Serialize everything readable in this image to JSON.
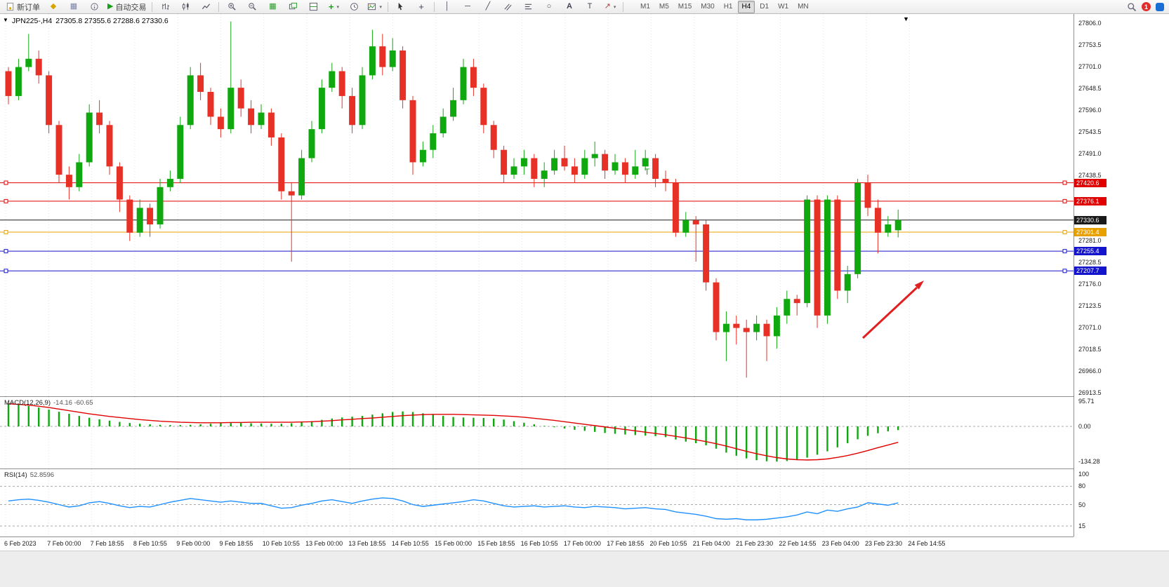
{
  "toolbar": {
    "new_order_label": "新订单",
    "auto_trading_label": "自动交易",
    "timeframes": [
      "M1",
      "M5",
      "M15",
      "M30",
      "H1",
      "H4",
      "D1",
      "W1",
      "MN"
    ],
    "active_timeframe": "H4",
    "notification_count": "1"
  },
  "icons": {
    "market_watch": "◆",
    "chart_window": "▦",
    "autotrade_play": "▶",
    "tile_windows": "▦",
    "indicator_plus": "+",
    "caret": "▾",
    "crosshair": "+",
    "vline": "│",
    "hline": "─",
    "trendline": "╱",
    "ellipse": "○",
    "text_tool": "A",
    "label_tool": "T",
    "arrows_tool": "↗",
    "collapse": "▼",
    "autoscroll": "▼"
  },
  "chart": {
    "title_symbol": "JPN225-,H4",
    "title_ohlc": "27305.8 27355.6 27288.6 27330.6",
    "macd_label": "MACD(12,26,9)",
    "macd_values": "-14.16 -60.65",
    "rsi_label": "RSI(14)",
    "rsi_value": "52.8596",
    "text_marker": "T"
  },
  "price_scale": {
    "ticks": [
      27806.0,
      27753.5,
      27701.0,
      27648.5,
      27596.0,
      27543.5,
      27491.0,
      27438.5,
      27281.0,
      27228.5,
      27176.0,
      27123.5,
      27071.0,
      27018.5,
      26966.0,
      26913.5
    ],
    "macd_ticks": [
      "95.71",
      "0.00",
      "-134.28"
    ],
    "rsi_ticks": [
      "100",
      "80",
      "50",
      "15"
    ]
  },
  "time_axis": {
    "labels": [
      "6 Feb 2023",
      "7 Feb 00:00",
      "7 Feb 18:55",
      "8 Feb 10:55",
      "9 Feb 00:00",
      "9 Feb 18:55",
      "10 Feb 10:55",
      "13 Feb 00:00",
      "13 Feb 18:55",
      "14 Feb 10:55",
      "15 Feb 00:00",
      "15 Feb 18:55",
      "16 Feb 10:55",
      "17 Feb 00:00",
      "17 Feb 18:55",
      "20 Feb 10:55",
      "21 Feb 04:00",
      "21 Feb 23:30",
      "22 Feb 14:55",
      "23 Feb 04:00",
      "23 Feb 23:30",
      "24 Feb 14:55"
    ]
  },
  "chart_data": {
    "type": "candlestick",
    "symbol": "JPN225-",
    "period": "H4",
    "price_range": [
      26913.5,
      27806.0
    ],
    "colors": {
      "up": "#0fa90f",
      "down": "#e83126",
      "macd_hist": "#0fa90f",
      "macd_signal": "#e00000",
      "rsi": "#1e90ff",
      "arrow": "#e02020"
    },
    "candles": [
      [
        27690,
        27700,
        27610,
        27630
      ],
      [
        27630,
        27720,
        27620,
        27700
      ],
      [
        27700,
        27780,
        27690,
        27720
      ],
      [
        27720,
        27740,
        27660,
        27680
      ],
      [
        27680,
        27690,
        27540,
        27560
      ],
      [
        27560,
        27570,
        27420,
        27440
      ],
      [
        27440,
        27460,
        27380,
        27410
      ],
      [
        27410,
        27490,
        27400,
        27470
      ],
      [
        27470,
        27610,
        27460,
        27590
      ],
      [
        27590,
        27620,
        27540,
        27560
      ],
      [
        27560,
        27570,
        27440,
        27460
      ],
      [
        27460,
        27470,
        27350,
        27380
      ],
      [
        27380,
        27390,
        27280,
        27300
      ],
      [
        27300,
        27380,
        27290,
        27360
      ],
      [
        27360,
        27370,
        27290,
        27320
      ],
      [
        27320,
        27430,
        27310,
        27410
      ],
      [
        27410,
        27450,
        27400,
        27430
      ],
      [
        27430,
        27580,
        27420,
        27560
      ],
      [
        27560,
        27700,
        27550,
        27680
      ],
      [
        27680,
        27710,
        27620,
        27640
      ],
      [
        27640,
        27650,
        27560,
        27580
      ],
      [
        27580,
        27600,
        27530,
        27550
      ],
      [
        27550,
        27810,
        27540,
        27650
      ],
      [
        27650,
        27670,
        27580,
        27600
      ],
      [
        27600,
        27620,
        27540,
        27560
      ],
      [
        27560,
        27610,
        27550,
        27590
      ],
      [
        27590,
        27600,
        27510,
        27530
      ],
      [
        27530,
        27540,
        27380,
        27400
      ],
      [
        27400,
        27420,
        27230,
        27390
      ],
      [
        27390,
        27500,
        27380,
        27480
      ],
      [
        27480,
        27570,
        27470,
        27550
      ],
      [
        27550,
        27670,
        27540,
        27650
      ],
      [
        27650,
        27710,
        27640,
        27690
      ],
      [
        27690,
        27700,
        27600,
        27630
      ],
      [
        27630,
        27650,
        27540,
        27560
      ],
      [
        27560,
        27700,
        27550,
        27680
      ],
      [
        27680,
        27790,
        27670,
        27750
      ],
      [
        27750,
        27780,
        27680,
        27700
      ],
      [
        27700,
        27770,
        27690,
        27740
      ],
      [
        27740,
        27750,
        27600,
        27620
      ],
      [
        27620,
        27630,
        27440,
        27470
      ],
      [
        27470,
        27520,
        27460,
        27500
      ],
      [
        27500,
        27560,
        27480,
        27540
      ],
      [
        27540,
        27600,
        27530,
        27580
      ],
      [
        27580,
        27650,
        27570,
        27620
      ],
      [
        27620,
        27720,
        27610,
        27700
      ],
      [
        27700,
        27720,
        27630,
        27650
      ],
      [
        27650,
        27660,
        27540,
        27560
      ],
      [
        27560,
        27570,
        27480,
        27500
      ],
      [
        27500,
        27510,
        27420,
        27440
      ],
      [
        27440,
        27480,
        27430,
        27460
      ],
      [
        27460,
        27500,
        27440,
        27480
      ],
      [
        27480,
        27490,
        27410,
        27430
      ],
      [
        27430,
        27470,
        27410,
        27450
      ],
      [
        27450,
        27500,
        27440,
        27480
      ],
      [
        27480,
        27510,
        27450,
        27460
      ],
      [
        27460,
        27480,
        27420,
        27440
      ],
      [
        27440,
        27500,
        27430,
        27480
      ],
      [
        27480,
        27520,
        27460,
        27490
      ],
      [
        27490,
        27500,
        27430,
        27450
      ],
      [
        27450,
        27490,
        27440,
        27470
      ],
      [
        27470,
        27480,
        27420,
        27440
      ],
      [
        27440,
        27500,
        27430,
        27460
      ],
      [
        27460,
        27500,
        27450,
        27480
      ],
      [
        27480,
        27490,
        27410,
        27430
      ],
      [
        27430,
        27450,
        27400,
        27420
      ],
      [
        27420,
        27430,
        27290,
        27300
      ],
      [
        27300,
        27350,
        27290,
        27330
      ],
      [
        27330,
        27340,
        27230,
        27320
      ],
      [
        27320,
        27330,
        27160,
        27180
      ],
      [
        27180,
        27190,
        27040,
        27060
      ],
      [
        27060,
        27110,
        26990,
        27080
      ],
      [
        27080,
        27100,
        27030,
        27070
      ],
      [
        27070,
        27090,
        26950,
        27060
      ],
      [
        27060,
        27100,
        27040,
        27080
      ],
      [
        27080,
        27090,
        26990,
        27050
      ],
      [
        27050,
        27120,
        27020,
        27100
      ],
      [
        27100,
        27160,
        27080,
        27140
      ],
      [
        27140,
        27150,
        27100,
        27130
      ],
      [
        27130,
        27390,
        27120,
        27380
      ],
      [
        27380,
        27390,
        27070,
        27100
      ],
      [
        27100,
        27390,
        27080,
        27380
      ],
      [
        27380,
        27390,
        27140,
        27160
      ],
      [
        27160,
        27220,
        27130,
        27200
      ],
      [
        27200,
        27430,
        27190,
        27420
      ],
      [
        27420,
        27440,
        27340,
        27360
      ],
      [
        27360,
        27380,
        27250,
        27300
      ],
      [
        27300,
        27340,
        27290,
        27320
      ],
      [
        27305.8,
        27355.6,
        27288.6,
        27330.6
      ]
    ],
    "macd": {
      "histogram": [
        88,
        84,
        78,
        72,
        64,
        56,
        48,
        40,
        33,
        27,
        22,
        17,
        13,
        10,
        8,
        6,
        5,
        5,
        6,
        8,
        10,
        12,
        13,
        13,
        12,
        11,
        10,
        10,
        12,
        16,
        20,
        25,
        30,
        34,
        37,
        40,
        45,
        50,
        55,
        57,
        55,
        50,
        45,
        40,
        36,
        34,
        33,
        32,
        30,
        26,
        20,
        14,
        8,
        2,
        -3,
        -8,
        -13,
        -17,
        -21,
        -25,
        -28,
        -31,
        -33,
        -35,
        -37,
        -41,
        -50,
        -58,
        -64,
        -72,
        -85,
        -100,
        -112,
        -122,
        -129,
        -133,
        -134,
        -132,
        -127,
        -119,
        -108,
        -95,
        -80,
        -64,
        -49,
        -36,
        -26,
        -19,
        -14.16
      ],
      "signal": [
        86,
        84,
        81,
        77,
        72,
        66,
        60,
        54,
        48,
        43,
        38,
        34,
        30,
        26,
        23,
        20,
        18,
        16,
        15,
        14,
        14,
        14,
        15,
        15,
        16,
        16,
        16,
        16,
        16,
        17,
        18,
        20,
        22,
        25,
        27,
        30,
        32,
        35,
        38,
        41,
        43,
        45,
        46,
        46,
        46,
        45,
        44,
        43,
        42,
        40,
        38,
        35,
        31,
        27,
        23,
        18,
        13,
        8,
        3,
        -2,
        -7,
        -12,
        -17,
        -22,
        -27,
        -32,
        -38,
        -44,
        -51,
        -58,
        -66,
        -75,
        -85,
        -95,
        -104,
        -112,
        -119,
        -124,
        -127,
        -128,
        -127,
        -124,
        -118,
        -111,
        -102,
        -92,
        -81,
        -71,
        -60.65
      ],
      "scale_max": 95.71,
      "scale_min": -134.28,
      "last_values": [
        -14.16,
        -60.65
      ]
    },
    "rsi": {
      "values": [
        56,
        58,
        59,
        57,
        54,
        50,
        46,
        48,
        53,
        55,
        52,
        48,
        45,
        47,
        46,
        50,
        54,
        57,
        60,
        58,
        56,
        54,
        56,
        54,
        52,
        52,
        48,
        44,
        45,
        49,
        52,
        56,
        58,
        55,
        52,
        56,
        59,
        61,
        60,
        56,
        50,
        47,
        49,
        51,
        53,
        55,
        58,
        56,
        52,
        48,
        46,
        47,
        48,
        46,
        47,
        48,
        46,
        45,
        47,
        46,
        45,
        43,
        44,
        45,
        43,
        42,
        38,
        36,
        34,
        31,
        27,
        26,
        27,
        25,
        25,
        26,
        28,
        30,
        33,
        38,
        35,
        41,
        39,
        43,
        46,
        53,
        51,
        49,
        52.86
      ],
      "levels": [
        80,
        50,
        15
      ],
      "last": 52.8596
    },
    "hlines": [
      {
        "price": 27420.6,
        "color": "#e00000",
        "label": "27420.6"
      },
      {
        "price": 27376.1,
        "color": "#e00000",
        "label": "27376.1"
      },
      {
        "price": 27330.6,
        "color": "#1a1a1a",
        "label": "27330.6"
      },
      {
        "price": 27301.4,
        "color": "#e8a000",
        "label": "27301.4"
      },
      {
        "price": 27255.4,
        "color": "#1414cc",
        "label": "27255.4"
      },
      {
        "price": 27207.7,
        "color": "#1414cc",
        "label": "27207.7"
      }
    ],
    "arrow_annotation": {
      "direction": "up-right",
      "color": "#e02020"
    }
  }
}
